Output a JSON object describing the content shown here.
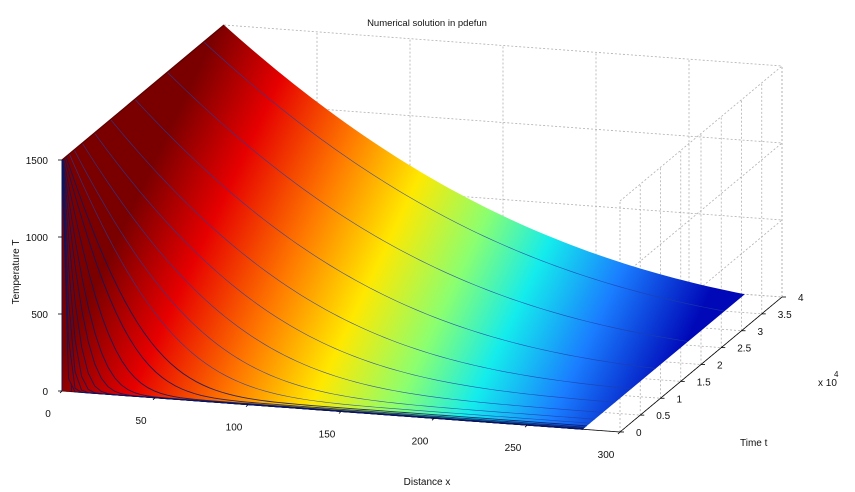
{
  "chart_data": {
    "type": "surface",
    "title": "Numerical solution in pdefun",
    "xlabel": "Distance x",
    "ylabel": "Time t",
    "zlabel": "Temperature T",
    "xlim": [
      0,
      300
    ],
    "ylim": [
      0,
      4
    ],
    "y_scale_label": "x 10",
    "y_scale_exponent": "4",
    "zlim": [
      0,
      1500
    ],
    "x_ticks": [
      "0",
      "50",
      "100",
      "150",
      "200",
      "250",
      "300"
    ],
    "y_ticks": [
      "0",
      "0.5",
      "1",
      "1.5",
      "2",
      "2.5",
      "3",
      "3.5",
      "4"
    ],
    "z_ticks": [
      "0",
      "500",
      "1000",
      "1500"
    ],
    "grid": true,
    "colormap": "jet",
    "surface": {
      "x_range": [
        0,
        280
      ],
      "t_range": [
        0,
        4
      ],
      "boundary_x0_T": 1500,
      "initial_T": 0,
      "edge_x280_T": 0
    }
  }
}
